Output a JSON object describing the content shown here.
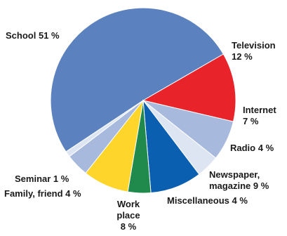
{
  "chart_data": {
    "type": "pie",
    "title": "",
    "slices": [
      {
        "name": "School",
        "value": 51,
        "label": "School 51 %",
        "color": "#5b82bf"
      },
      {
        "name": "Television",
        "value": 12,
        "label": "Television\n12 %",
        "color": "#e8232a"
      },
      {
        "name": "Internet",
        "value": 7,
        "label": "Internet\n7 %",
        "color": "#a7b9dc"
      },
      {
        "name": "Radio",
        "value": 4,
        "label": "Radio 4 %",
        "color": "#dde5f3"
      },
      {
        "name": "Newspaper, magazine",
        "value": 9,
        "label": "Newspaper,\nmagazine 9 %",
        "color": "#0b5fb0"
      },
      {
        "name": "Miscellaneous",
        "value": 4,
        "label": "Miscellaneous 4 %",
        "color": "#1f8a4c"
      },
      {
        "name": "Work place",
        "value": 8,
        "label": "Work\nplace\n8 %",
        "color": "#fdd52b"
      },
      {
        "name": "Family, friend",
        "value": 4,
        "label": "Family, friend 4 %",
        "color": "#a7b9dc"
      },
      {
        "name": "Seminar",
        "value": 1,
        "label": "Seminar 1 %",
        "color": "#dde5f3"
      }
    ]
  }
}
